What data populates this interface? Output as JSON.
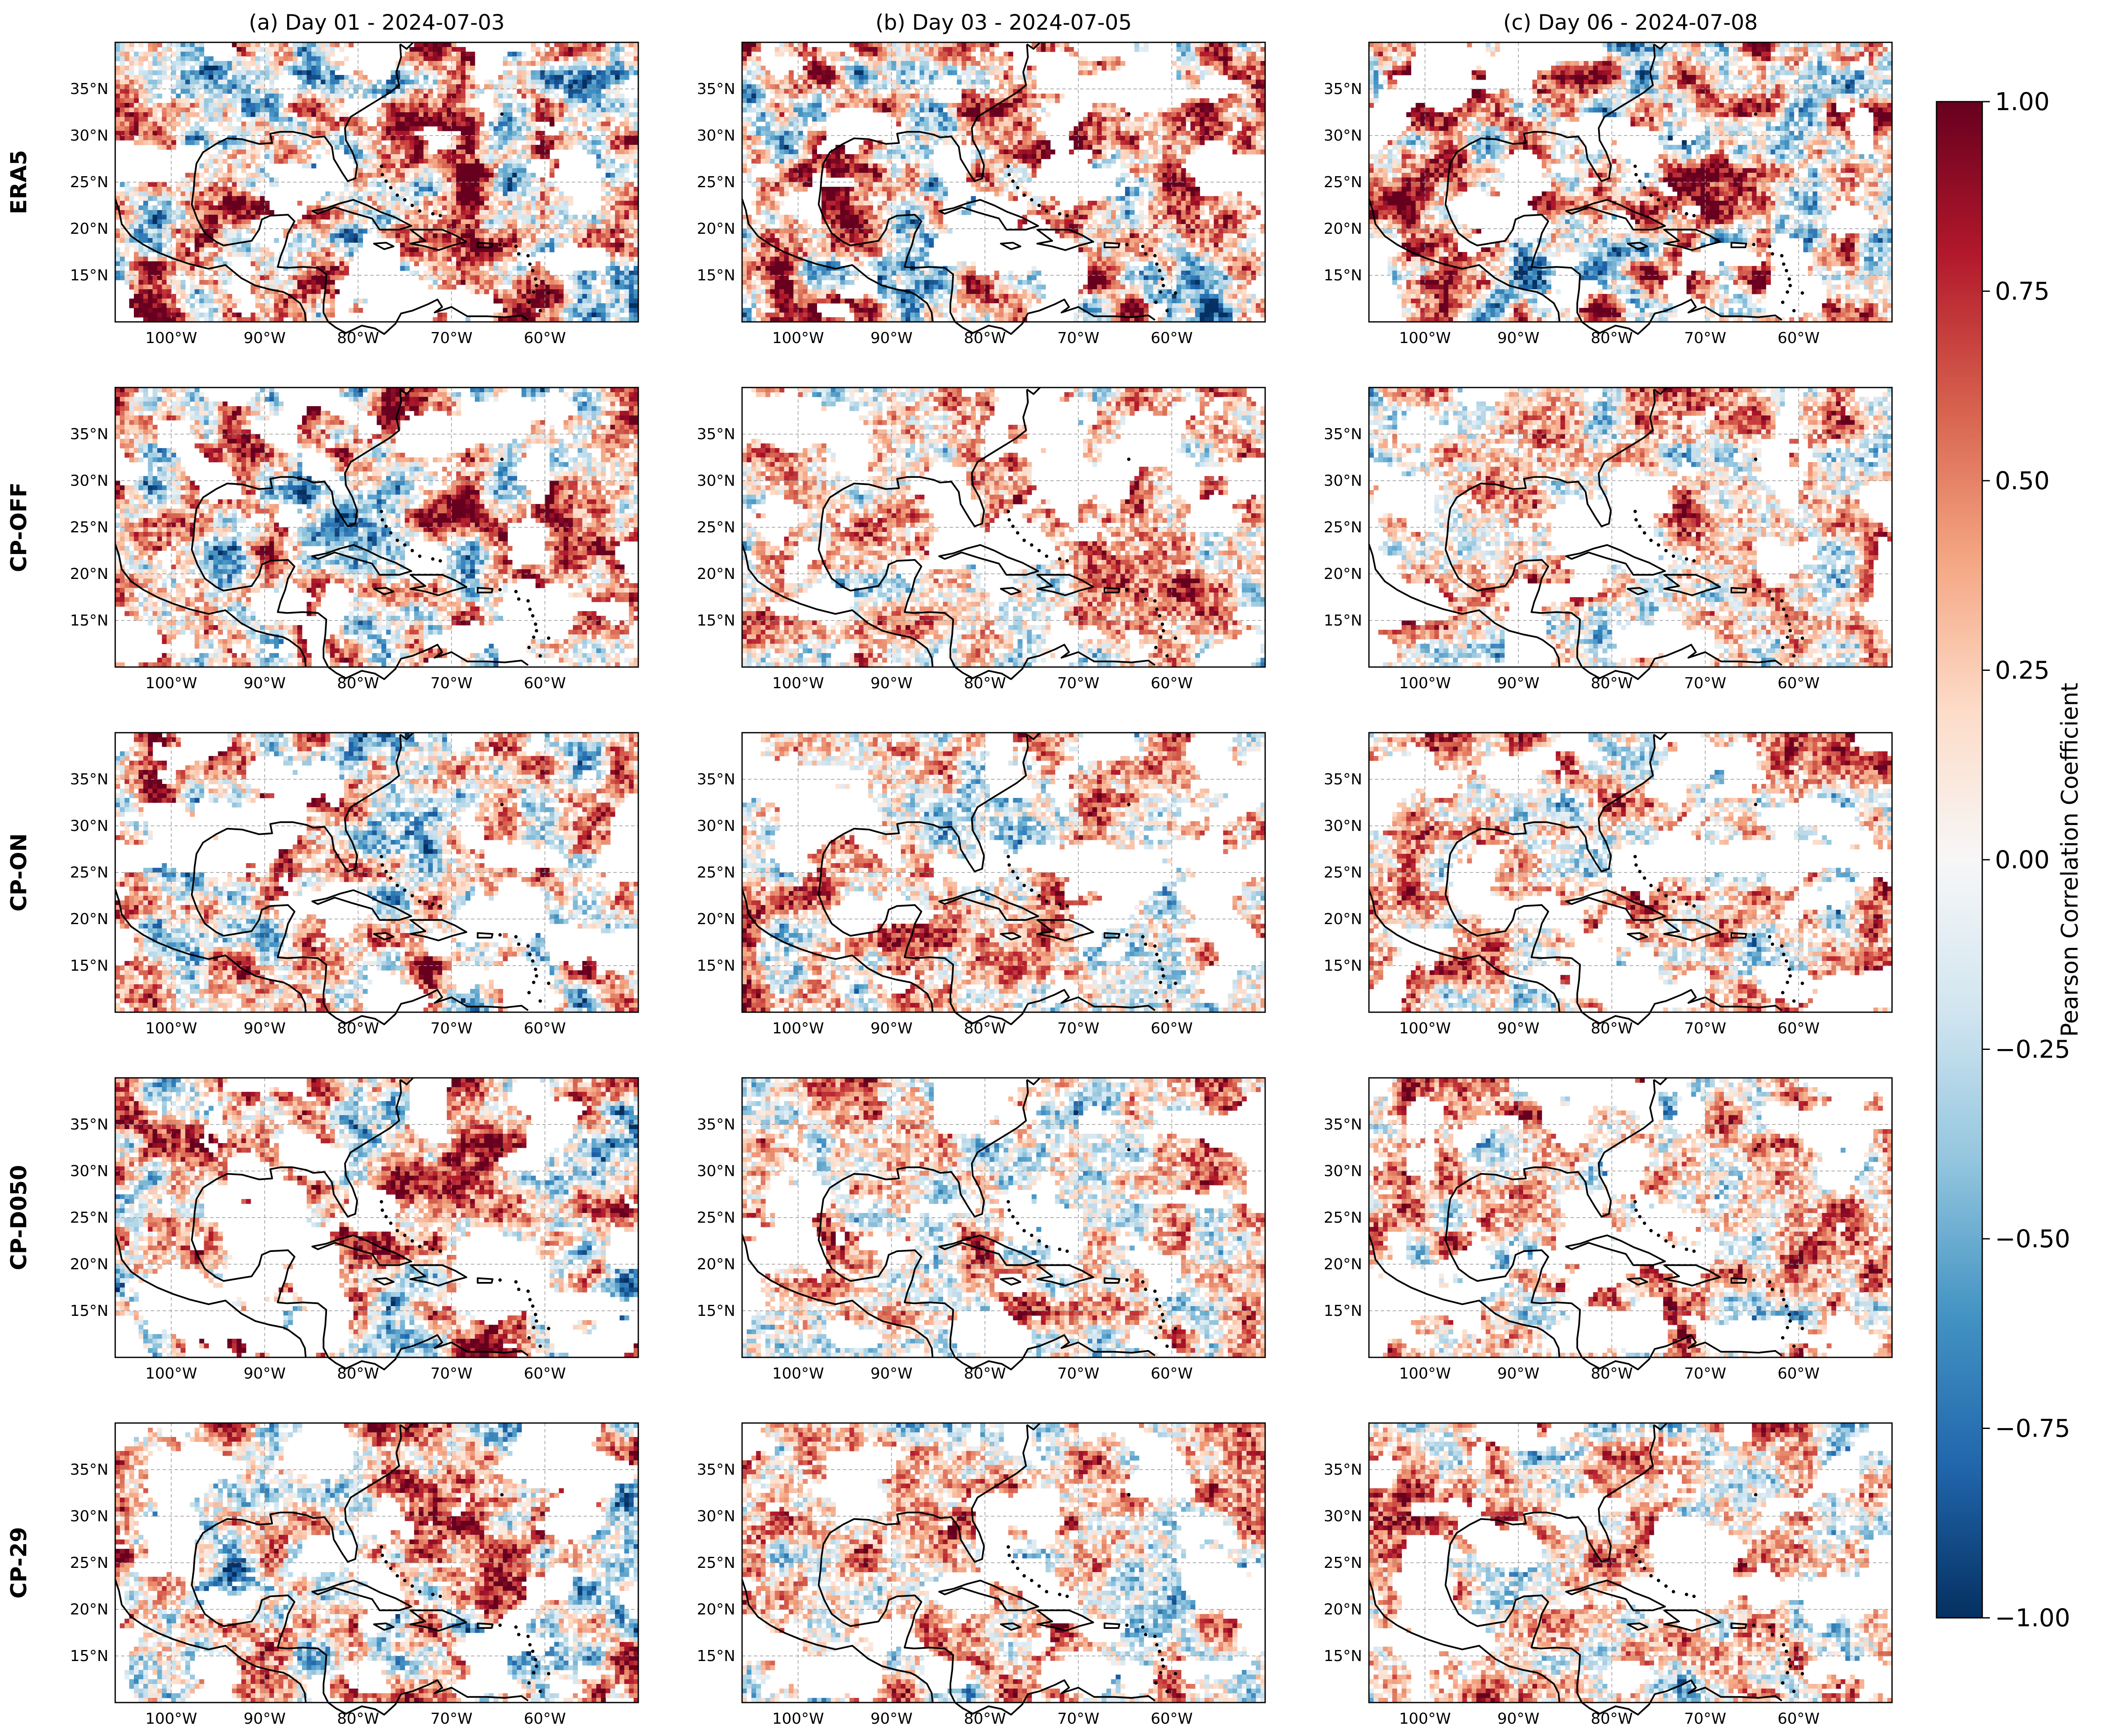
{
  "figure": {
    "column_titles": [
      "(a) Day 01 - 2024-07-03",
      "(b) Day 03 - 2024-07-05",
      "(c) Day 06 - 2024-07-08"
    ],
    "row_labels": [
      "ERA5",
      "CP-OFF",
      "CP-ON",
      "CP-D050",
      "CP-29"
    ],
    "lat_ticks": [
      "15°N",
      "20°N",
      "25°N",
      "30°N",
      "35°N"
    ],
    "lon_ticks": [
      "100°W",
      "90°W",
      "80°W",
      "70°W",
      "60°W"
    ],
    "colorbar": {
      "label": "Pearson Correlation Coefficient",
      "ticks": [
        "1.00",
        "0.75",
        "0.50",
        "0.25",
        "0.00",
        "−0.25",
        "−0.50",
        "−0.75",
        "−1.00"
      ],
      "tick_values": [
        1.0,
        0.75,
        0.5,
        0.25,
        0.0,
        -0.25,
        -0.5,
        -0.75,
        -1.0
      ],
      "cmap": "RdBu_r",
      "colors": [
        "#053061",
        "#2166ac",
        "#4393c3",
        "#92c5de",
        "#d1e5f0",
        "#f7f7f7",
        "#fddbc7",
        "#f4a582",
        "#d6604d",
        "#b2182b",
        "#67001f"
      ]
    }
  },
  "chart_data": {
    "type": "heatmap",
    "title": "",
    "xlabel": "",
    "ylabel": "",
    "x_range": [
      -106,
      -50
    ],
    "y_range": [
      10,
      40
    ],
    "z_range": [
      -1,
      1
    ],
    "colorbar_label": "Pearson Correlation Coefficient",
    "columns": [
      "(a) Day 01 - 2024-07-03",
      "(b) Day 03 - 2024-07-05",
      "(c) Day 06 - 2024-07-08"
    ],
    "rows": [
      "ERA5",
      "CP-OFF",
      "CP-ON",
      "CP-D050",
      "CP-29"
    ],
    "grid": "dashed"
  }
}
